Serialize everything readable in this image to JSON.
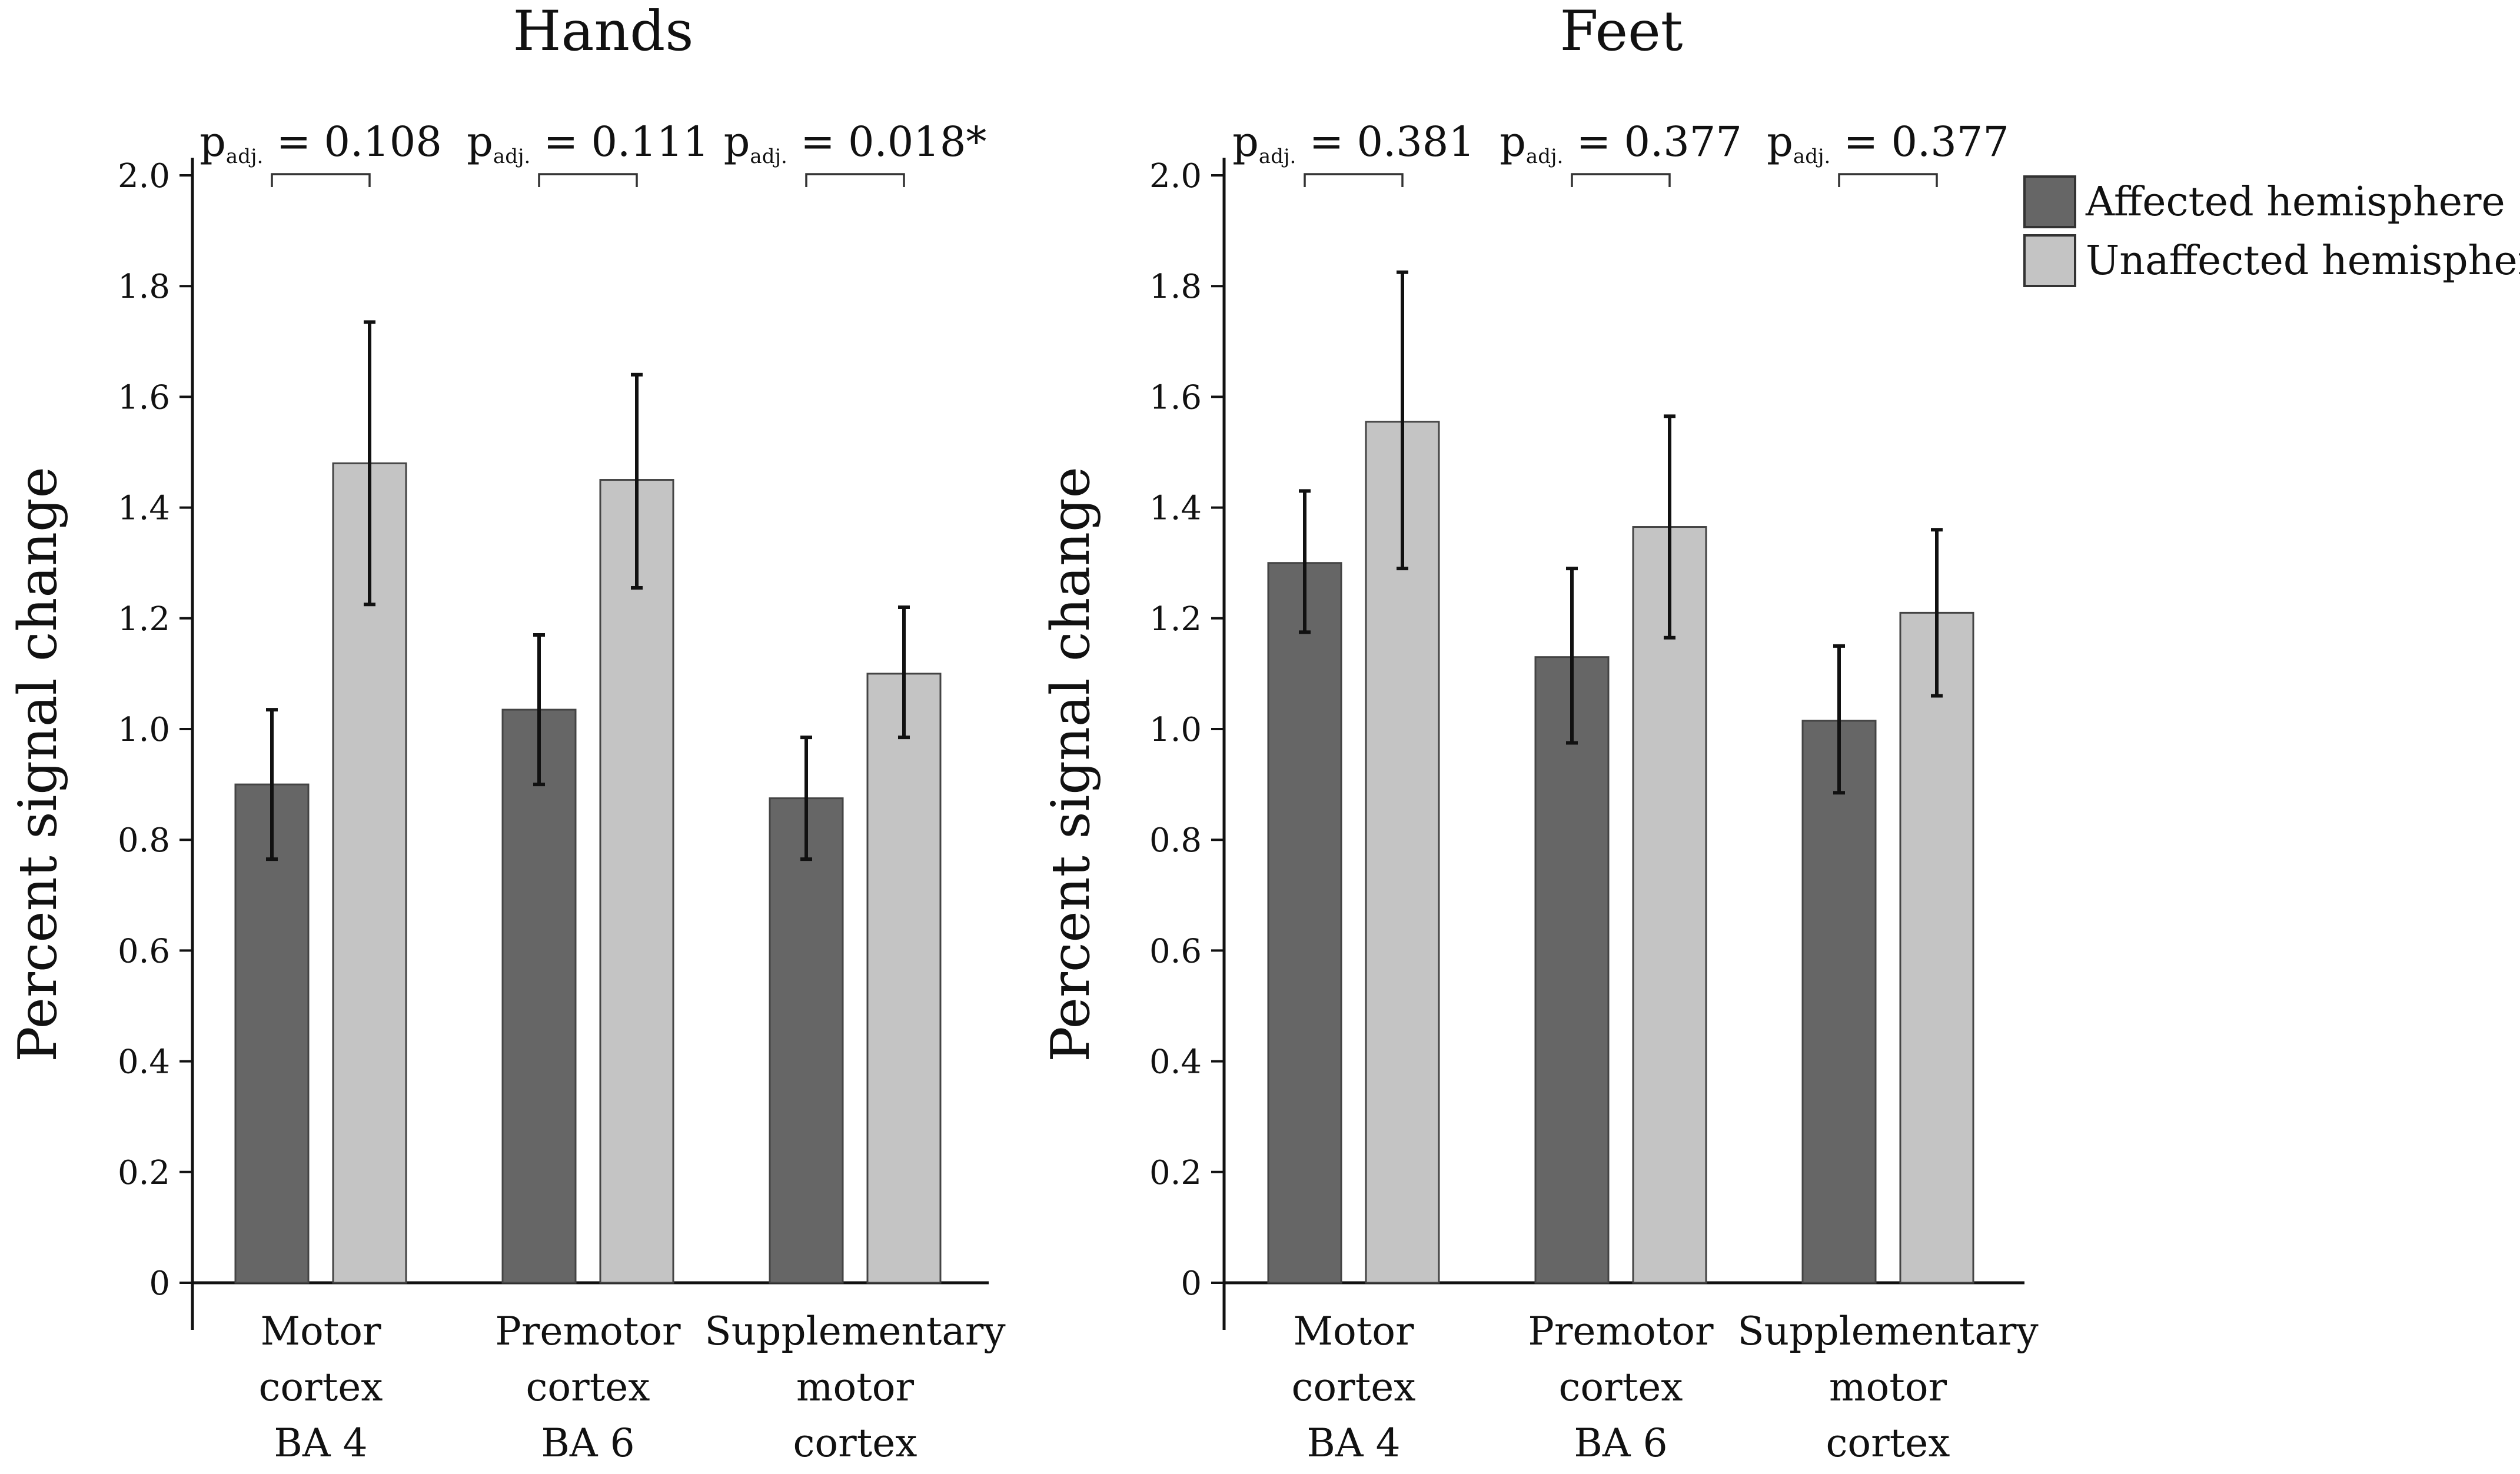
{
  "chart_data": [
    {
      "type": "bar",
      "title": "Hands",
      "ylabel": "Percent signal change",
      "xlabel": "",
      "ylim": [
        0,
        2.0
      ],
      "yticks": [
        "0",
        "0.2",
        "0.4",
        "0.6",
        "0.8",
        "1.0",
        "1.2",
        "1.4",
        "1.6",
        "1.8",
        "2.0"
      ],
      "categories": [
        [
          "Motor",
          "cortex",
          "BA 4"
        ],
        [
          "Premotor",
          "cortex",
          "BA 6"
        ],
        [
          "Supplementary",
          "motor",
          "cortex"
        ]
      ],
      "series": [
        {
          "name": "Affected hemisphere",
          "color": "#666666",
          "values": [
            0.9,
            1.035,
            0.875
          ],
          "error_low": [
            0.765,
            0.9,
            0.765
          ],
          "error_high": [
            1.035,
            1.17,
            0.985
          ]
        },
        {
          "name": "Unaffected hemisphere",
          "color": "#c4c4c4",
          "values": [
            1.48,
            1.45,
            1.1
          ],
          "error_low": [
            1.225,
            1.255,
            0.985
          ],
          "error_high": [
            1.735,
            1.64,
            1.22
          ]
        }
      ],
      "annotations": [
        {
          "p": "p",
          "sub": "adj.",
          "value": " = 0.108"
        },
        {
          "p": "p",
          "sub": "adj.",
          "value": " = 0.111"
        },
        {
          "p": "p",
          "sub": "adj.",
          "value": " = 0.018*"
        }
      ]
    },
    {
      "type": "bar",
      "title": "Feet",
      "ylabel": "Percent signal change",
      "xlabel": "",
      "ylim": [
        0,
        2.0
      ],
      "yticks": [
        "0",
        "0.2",
        "0.4",
        "0.6",
        "0.8",
        "1.0",
        "1.2",
        "1.4",
        "1.6",
        "1.8",
        "2.0"
      ],
      "categories": [
        [
          "Motor",
          "cortex",
          "BA 4"
        ],
        [
          "Premotor",
          "cortex",
          "BA 6"
        ],
        [
          "Supplementary",
          "motor",
          "cortex"
        ]
      ],
      "series": [
        {
          "name": "Affected hemisphere",
          "color": "#666666",
          "values": [
            1.3,
            1.13,
            1.015
          ],
          "error_low": [
            1.175,
            0.975,
            0.885
          ],
          "error_high": [
            1.43,
            1.29,
            1.15
          ]
        },
        {
          "name": "Unaffected hemisphere",
          "color": "#c4c4c4",
          "values": [
            1.555,
            1.365,
            1.21
          ],
          "error_low": [
            1.29,
            1.165,
            1.06
          ],
          "error_high": [
            1.825,
            1.565,
            1.36
          ]
        }
      ],
      "annotations": [
        {
          "p": "p",
          "sub": "adj.",
          "value": " = 0.381"
        },
        {
          "p": "p",
          "sub": "adj.",
          "value": " = 0.377"
        },
        {
          "p": "p",
          "sub": "adj.",
          "value": " = 0.377"
        }
      ]
    }
  ],
  "legend": {
    "items": [
      {
        "label": "Affected hemisphere",
        "color": "#666666"
      },
      {
        "label": "Unaffected hemisphere",
        "color": "#c4c4c4"
      }
    ]
  }
}
